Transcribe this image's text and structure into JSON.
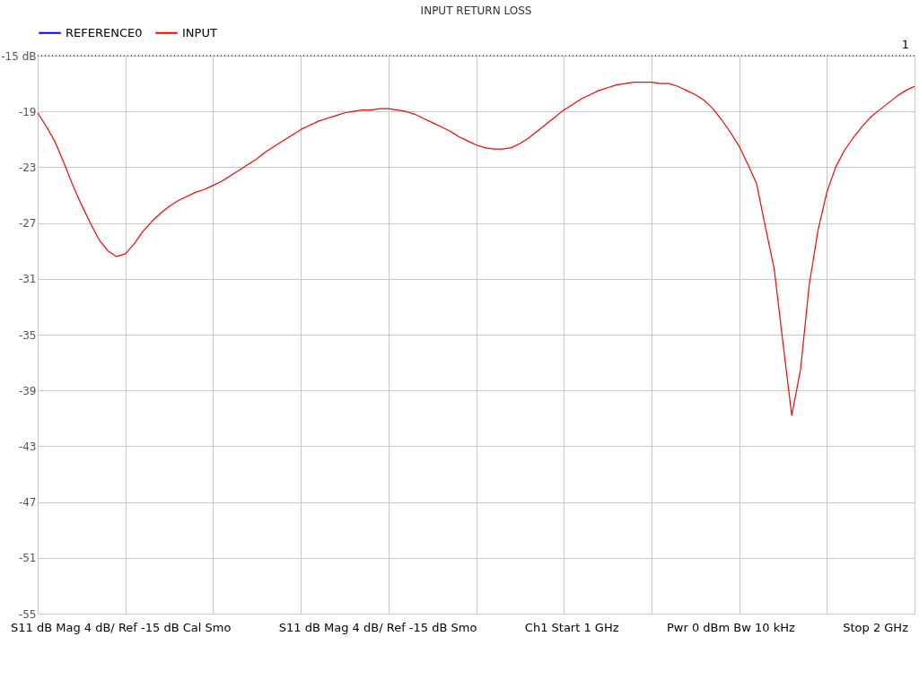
{
  "chart_data": {
    "type": "line",
    "title": "INPUT RETURN LOSS",
    "categories": [
      null,
      null,
      null,
      null,
      null,
      null,
      null,
      null,
      null,
      null,
      null,
      null,
      null,
      null,
      null,
      null,
      null,
      null,
      null,
      null,
      null,
      null,
      null,
      null,
      null,
      null,
      null,
      null,
      null,
      null,
      null,
      null,
      null,
      null,
      null,
      null,
      null,
      null,
      null,
      null,
      null,
      null,
      null,
      null,
      null,
      null,
      null,
      null,
      null,
      null,
      null,
      null,
      null,
      null,
      null,
      null,
      null,
      null,
      null,
      null,
      null,
      null,
      null,
      null,
      null,
      null,
      null,
      null,
      null,
      null,
      null,
      null,
      null,
      null,
      null,
      null,
      null,
      null,
      null,
      null,
      null,
      null,
      null,
      null,
      null,
      null,
      null,
      null,
      null,
      null,
      null,
      null,
      null,
      null,
      null,
      null,
      null,
      null,
      null,
      null,
      null
    ],
    "series": [
      {
        "name": "REFERENCE0",
        "color": "#0000ff",
        "values": [
          null,
          null,
          null,
          null,
          null,
          null,
          null,
          null,
          null,
          null,
          null,
          null,
          null,
          null,
          null,
          null,
          null,
          null,
          null,
          null,
          null,
          null,
          null,
          null,
          null,
          null,
          null,
          null,
          null,
          null,
          null,
          null,
          null,
          null,
          null,
          null,
          null,
          null,
          null,
          null,
          null,
          null,
          null,
          null,
          null,
          null,
          null,
          null,
          null,
          null,
          null,
          null,
          null,
          null,
          null,
          null,
          null,
          null,
          null,
          null,
          null,
          null,
          null,
          null,
          null,
          null,
          null,
          null,
          null,
          null,
          null,
          null,
          null,
          null,
          null,
          null,
          null,
          null,
          null,
          null,
          null,
          null,
          null,
          null,
          null,
          null,
          null,
          null,
          null,
          null,
          null,
          null,
          null,
          null,
          null,
          null,
          null,
          null,
          null,
          null,
          null
        ]
      },
      {
        "name": "INPUT",
        "color": "#ff0000",
        "values": [
          -19.1,
          -20.1,
          -21.2,
          -22.7,
          -24.3,
          -25.7,
          -27.0,
          -28.2,
          -29.0,
          -29.4,
          -29.2,
          -28.5,
          -27.6,
          -26.9,
          -26.3,
          -25.8,
          -25.4,
          -25.1,
          -24.8,
          -24.6,
          -24.3,
          -24.0,
          -23.6,
          -23.2,
          -22.8,
          -22.4,
          -21.9,
          -21.5,
          -21.1,
          -20.7,
          -20.3,
          -20.0,
          -19.7,
          -19.5,
          -19.3,
          -19.1,
          -19.0,
          -18.9,
          -18.9,
          -18.8,
          -18.8,
          -18.9,
          -19.0,
          -19.2,
          -19.5,
          -19.8,
          -20.1,
          -20.4,
          -20.8,
          -21.1,
          -21.4,
          -21.6,
          -21.7,
          -21.7,
          -21.6,
          -21.3,
          -20.9,
          -20.4,
          -19.9,
          -19.4,
          -18.9,
          -18.5,
          -18.1,
          -17.8,
          -17.5,
          -17.3,
          -17.1,
          -17.0,
          -16.9,
          -16.9,
          -16.9,
          -17.0,
          -17.0,
          -17.2,
          -17.5,
          -17.8,
          -18.2,
          -18.8,
          -19.6,
          -20.5,
          -21.5,
          -22.8,
          -24.2,
          -27.3,
          -30.3,
          -35.6,
          -40.8,
          -37.5,
          -31.4,
          -27.5,
          -24.8,
          -23.0,
          -21.8,
          -20.9,
          -20.1,
          -19.4,
          -18.9,
          -18.4,
          -17.9,
          -17.5,
          -17.2
        ]
      }
    ],
    "ylim": [
      -55,
      -15
    ],
    "yticks": [
      {
        "value": -15,
        "label": "-15 dB"
      },
      -19,
      -23,
      -27,
      -31,
      -35,
      -39,
      -43,
      -47,
      -51,
      -55
    ],
    "tick_labels": "y",
    "grid": true,
    "legend": "top",
    "marker": "none",
    "line_style": "solid",
    "ref_lines": [
      {
        "axis": "y",
        "value": -15,
        "line_style": "dotted",
        "color": "#000000"
      }
    ],
    "annotations": [
      {
        "text": "1",
        "y": -15
      },
      "S11  dB Mag  4 dB/ Ref -15 dB  Cal Smo",
      "S11  dB Mag  4 dB/ Ref -15 dB  Smo",
      "Ch1  Start  1 GHz",
      "Pwr  0 dBm  Bw  10 kHz",
      "Stop  2 GHz"
    ]
  }
}
